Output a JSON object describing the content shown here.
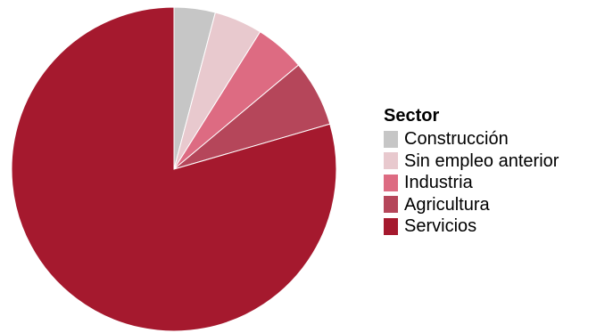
{
  "chart_data": {
    "type": "pie",
    "title": "",
    "legend_title": "Sector",
    "legend_position": "right",
    "start_angle_deg": 0,
    "direction": "clockwise",
    "categories": [
      "Construcción",
      "Sin empleo anterior",
      "Industria",
      "Agricultura",
      "Servicios"
    ],
    "values": [
      4.1,
      4.8,
      5.0,
      6.6,
      79.5
    ],
    "colors": [
      "#c6c6c6",
      "#e8c9ce",
      "#dd6b82",
      "#b5465a",
      "#a5192e"
    ]
  }
}
